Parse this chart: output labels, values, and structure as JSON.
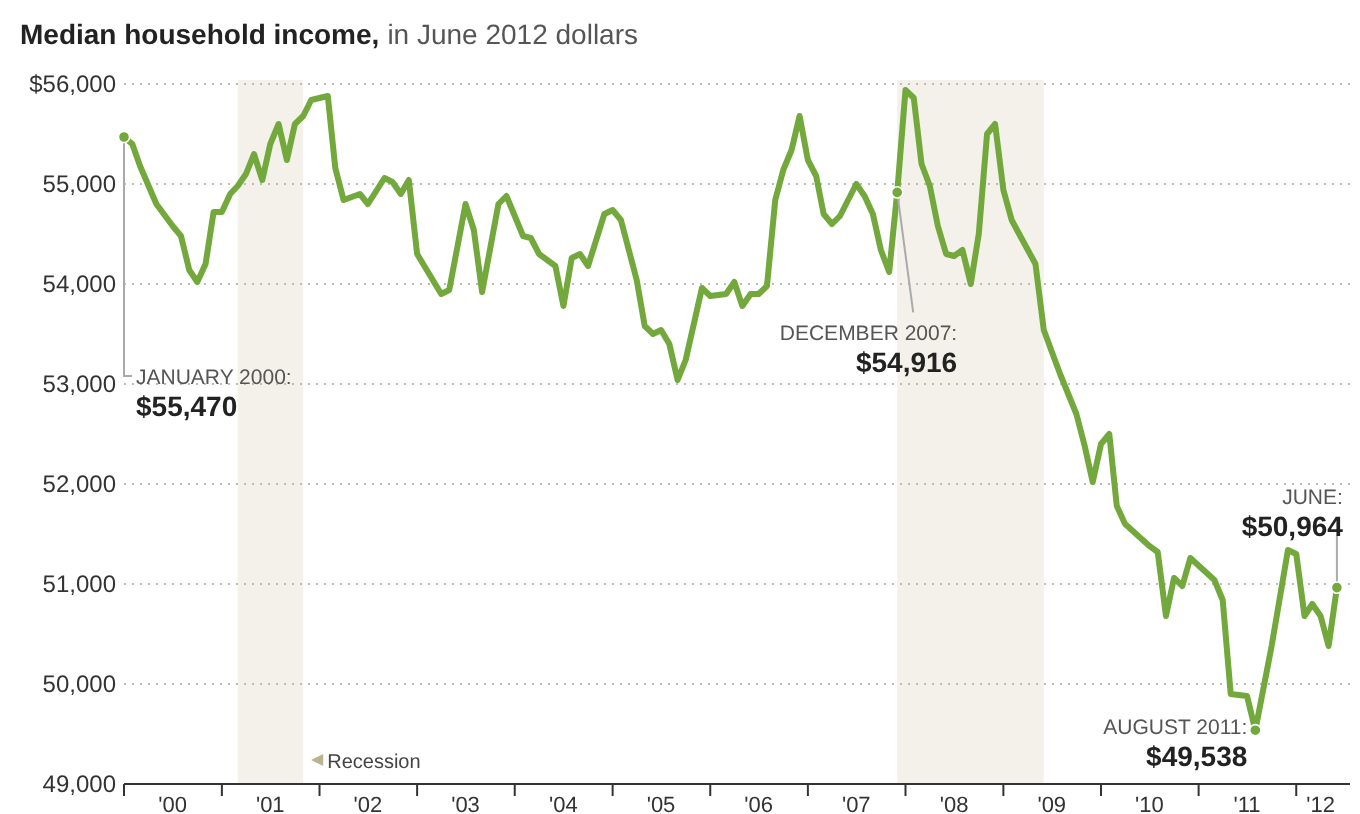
{
  "chart_data": {
    "type": "line",
    "title": "Median household income,",
    "subtitle": "in June 2012 dollars",
    "x": [
      "2000-01",
      "2000-02",
      "2000-03",
      "2000-05",
      "2000-07",
      "2000-08",
      "2000-09",
      "2000-10",
      "2000-11",
      "2000-12",
      "2001-01",
      "2001-02",
      "2001-03",
      "2001-04",
      "2001-05",
      "2001-06",
      "2001-07",
      "2001-08",
      "2001-09",
      "2001-10",
      "2001-11",
      "2001-12",
      "2002-02",
      "2002-03",
      "2002-04",
      "2002-06",
      "2002-07",
      "2002-09",
      "2002-10",
      "2002-11",
      "2002-12",
      "2003-01",
      "2003-04",
      "2003-05",
      "2003-07",
      "2003-08",
      "2003-09",
      "2003-11",
      "2003-12",
      "2004-02",
      "2004-03",
      "2004-04",
      "2004-06",
      "2004-07",
      "2004-08",
      "2004-09",
      "2004-10",
      "2004-12",
      "2005-01",
      "2005-02",
      "2005-04",
      "2005-05",
      "2005-06",
      "2005-07",
      "2005-08",
      "2005-09",
      "2005-10",
      "2005-12",
      "2006-01",
      "2006-03",
      "2006-04",
      "2006-05",
      "2006-06",
      "2006-07",
      "2006-08",
      "2006-09",
      "2006-10",
      "2006-11",
      "2006-12",
      "2007-01",
      "2007-02",
      "2007-03",
      "2007-04",
      "2007-05",
      "2007-07",
      "2007-08",
      "2007-09",
      "2007-10",
      "2007-11",
      "2007-12",
      "2008-01",
      "2008-02",
      "2008-03",
      "2008-04",
      "2008-05",
      "2008-06",
      "2008-07",
      "2008-08",
      "2008-09",
      "2008-10",
      "2008-11",
      "2008-12",
      "2009-01",
      "2009-02",
      "2009-03",
      "2009-05",
      "2009-06",
      "2009-08",
      "2009-10",
      "2009-11",
      "2009-12",
      "2010-01",
      "2010-02",
      "2010-03",
      "2010-04",
      "2010-07",
      "2010-08",
      "2010-09",
      "2010-10",
      "2010-11",
      "2010-12",
      "2011-03",
      "2011-04",
      "2011-05",
      "2011-07",
      "2011-08",
      "2011-10",
      "2011-12",
      "2012-01",
      "2012-02",
      "2012-03",
      "2012-04",
      "2012-05",
      "2012-06"
    ],
    "series": [
      {
        "color": "#72a83c",
        "values": [
          55470,
          55400,
          55180,
          54800,
          54580,
          54480,
          54140,
          54020,
          54200,
          54720,
          54720,
          54900,
          54980,
          55100,
          55300,
          55040,
          55400,
          55600,
          55240,
          55600,
          55680,
          55840,
          55880,
          55160,
          54840,
          54900,
          54800,
          55060,
          55020,
          54900,
          55040,
          54300,
          53900,
          53940,
          54800,
          54540,
          53920,
          54800,
          54880,
          54480,
          54460,
          54300,
          54180,
          53780,
          54260,
          54300,
          54180,
          54700,
          54740,
          54640,
          54040,
          53580,
          53500,
          53540,
          53400,
          53040,
          53240,
          53960,
          53880,
          53900,
          54020,
          53780,
          53900,
          53900,
          53980,
          54840,
          55140,
          55340,
          55680,
          55240,
          55080,
          54700,
          54600,
          54680,
          55000,
          54880,
          54700,
          54340,
          54120,
          54916,
          55940,
          55860,
          55200,
          54980,
          54580,
          54300,
          54280,
          54340,
          54000,
          54500,
          55500,
          55600,
          54940,
          54640,
          54500,
          54200,
          53540,
          53100,
          52700,
          52380,
          52020,
          52400,
          52500,
          51780,
          51600,
          51380,
          51320,
          50680,
          51060,
          50980,
          51260,
          51040,
          50840,
          49900,
          49880,
          49538,
          50380,
          51340,
          51300,
          50680,
          50800,
          50680,
          50380,
          50964
        ]
      }
    ],
    "xlim": [
      "2000-01",
      "2012-07-20"
    ],
    "xticks": [
      {
        "value": "2000",
        "label": null
      },
      {
        "value": "2000-07",
        "label": "'00"
      },
      {
        "value": "2001",
        "label": null
      },
      {
        "value": "2001-07",
        "label": "'01"
      },
      {
        "value": "2002",
        "label": null
      },
      {
        "value": "2002-07",
        "label": "'02"
      },
      {
        "value": "2003",
        "label": null
      },
      {
        "value": "2003-07",
        "label": "'03"
      },
      {
        "value": "2004",
        "label": null
      },
      {
        "value": "2004-07",
        "label": "'04"
      },
      {
        "value": "2005",
        "label": null
      },
      {
        "value": "2005-07",
        "label": "'05"
      },
      {
        "value": "2006",
        "label": null
      },
      {
        "value": "2006-07",
        "label": "'06"
      },
      {
        "value": "2007",
        "label": null
      },
      {
        "value": "2007-07",
        "label": "'07"
      },
      {
        "value": "2008",
        "label": null
      },
      {
        "value": "2008-07",
        "label": "'08"
      },
      {
        "value": "2009",
        "label": null
      },
      {
        "value": "2009-07",
        "label": "'09"
      },
      {
        "value": "2010",
        "label": null
      },
      {
        "value": "2010-07",
        "label": "'10"
      },
      {
        "value": "2011",
        "label": null
      },
      {
        "value": "2011-07",
        "label": "'11"
      },
      {
        "value": "2012",
        "label": null
      },
      {
        "value": "2012-04",
        "label": "'12"
      }
    ],
    "ylim": [
      49000,
      56000
    ],
    "yticks": [
      {
        "value": 49000,
        "label": "49,000"
      },
      {
        "value": 50000,
        "label": "50,000"
      },
      {
        "value": 51000,
        "label": "51,000"
      },
      {
        "value": 52000,
        "label": "52,000"
      },
      {
        "value": 53000,
        "label": "53,000"
      },
      {
        "value": 54000,
        "label": "54,000"
      },
      {
        "value": 55000,
        "label": "55,000"
      },
      {
        "value": 56000,
        "label": "$56,000"
      }
    ],
    "grid": "y",
    "line_style": "solid",
    "bands": [
      {
        "axis": "x",
        "from": "2001-03",
        "to": "2001-11",
        "label": "Recession",
        "color": "#f3f1ea"
      },
      {
        "axis": "x",
        "from": "2007-12",
        "to": "2009-06",
        "color": "#f3f1ea"
      }
    ],
    "annotations": [
      {
        "text": "JANUARY 2000:\n$55,470",
        "x": "2000-01",
        "y": 55470
      },
      {
        "text": "DECEMBER 2007:\n$54,916",
        "x": "2007-12",
        "y": 54916
      },
      {
        "text": "AUGUST 2011:\n$49,538",
        "x": "2011-08",
        "y": 49538
      },
      {
        "text": "JUNE:\n$50,964",
        "x": "2012-06",
        "y": 50964
      }
    ]
  }
}
